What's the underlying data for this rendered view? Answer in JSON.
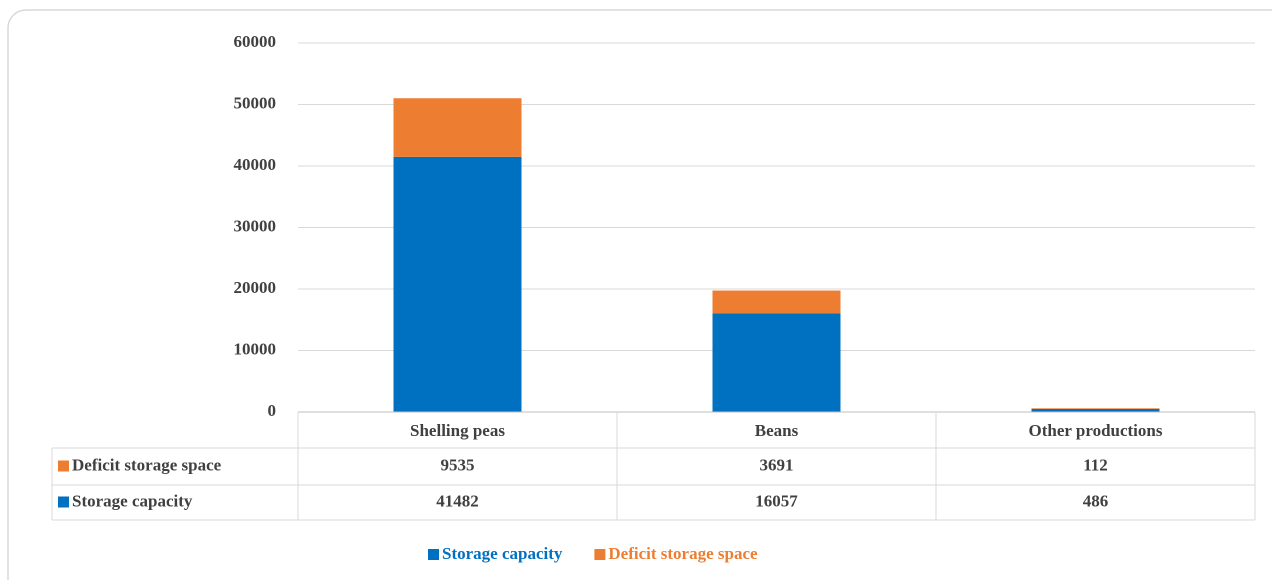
{
  "chart_data": {
    "type": "stacked_bar",
    "categories": [
      "Shelling peas",
      "Beans",
      "Other productions"
    ],
    "series": [
      {
        "name": "Storage capacity",
        "color": "#0070c0",
        "values": [
          41482,
          16057,
          486
        ]
      },
      {
        "name": "Deficit storage space",
        "color": "#ed7d31",
        "values": [
          9535,
          3691,
          112
        ]
      }
    ],
    "ylim": [
      0,
      60000
    ],
    "yticks": [
      0,
      10000,
      20000,
      30000,
      40000,
      50000,
      60000
    ],
    "grid": true,
    "data_table": true,
    "legend": "bottom"
  }
}
